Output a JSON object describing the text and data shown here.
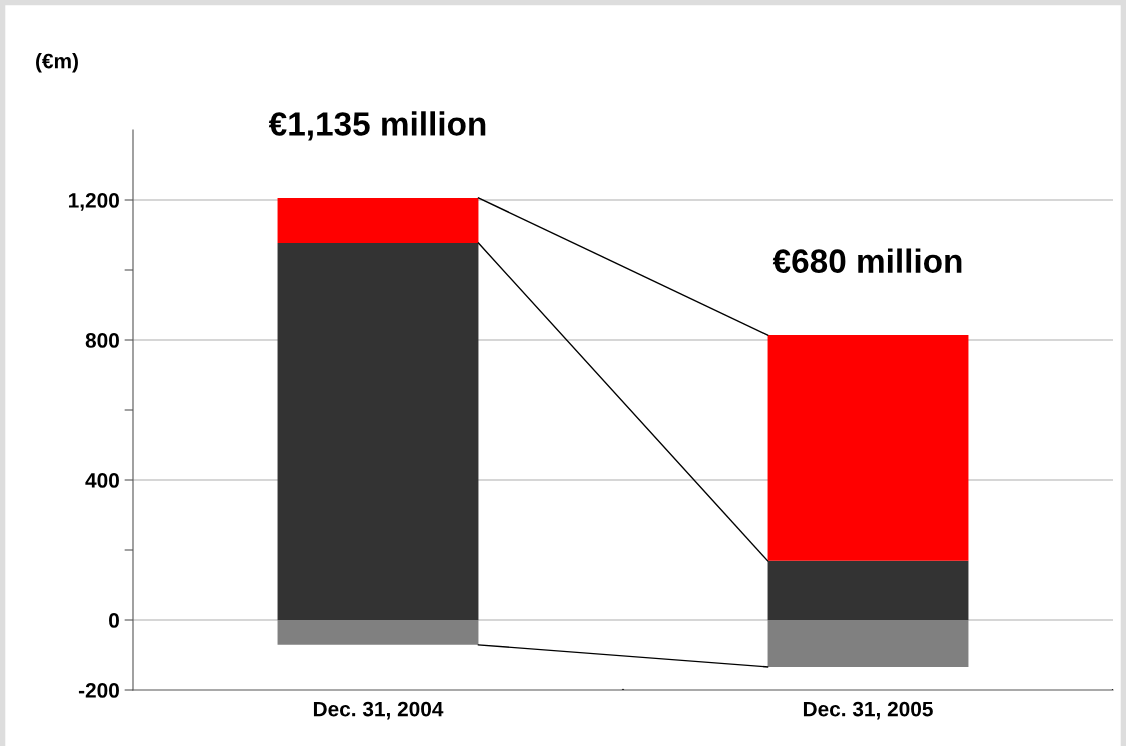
{
  "chart_data": {
    "type": "bar",
    "stacked": true,
    "ylabel": "(€m)",
    "categories": [
      "Dec. 31, 2004",
      "Dec. 31, 2005"
    ],
    "series": [
      {
        "color": "#333333",
        "values": [
          1077,
          169
        ]
      },
      {
        "color": "#ff0000",
        "values": [
          129,
          645
        ]
      },
      {
        "color": "#808080",
        "values": [
          -71,
          -134
        ]
      }
    ],
    "totals": [
      "€1,135 million",
      "€680 million"
    ],
    "ylim": [
      -200,
      1400
    ],
    "yticks": [
      -200,
      0,
      {
        "value": 200,
        "label": null
      },
      400,
      {
        "value": 600,
        "label": null
      },
      800,
      {
        "value": 1000,
        "label": null
      },
      {
        "value": 1200,
        "label": "1,200"
      }
    ],
    "grid": "y",
    "legend": false
  }
}
